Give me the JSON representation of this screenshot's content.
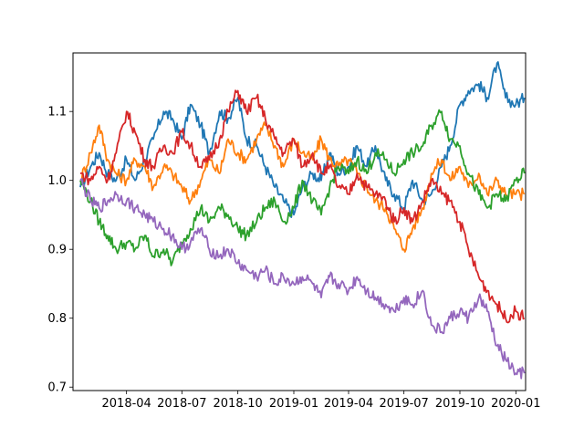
{
  "chart_data": {
    "type": "line",
    "title": "",
    "xlabel": "",
    "ylabel": "",
    "x_range": [
      "2018-01-15",
      "2020-01-15"
    ],
    "xlim": [
      "2018-01-03",
      "2020-01-17"
    ],
    "ylim": [
      0.695,
      1.185
    ],
    "x_ticks": [
      {
        "date": "2018-04-01",
        "label": "2018-04"
      },
      {
        "date": "2018-07-01",
        "label": "2018-07"
      },
      {
        "date": "2018-10-01",
        "label": "2018-10"
      },
      {
        "date": "2019-01-01",
        "label": "2019-01"
      },
      {
        "date": "2019-04-01",
        "label": "2019-04"
      },
      {
        "date": "2019-07-01",
        "label": "2019-07"
      },
      {
        "date": "2019-10-01",
        "label": "2019-10"
      },
      {
        "date": "2020-01-01",
        "label": "2020-01"
      }
    ],
    "y_ticks": [
      {
        "value": 0.7,
        "label": "0.7"
      },
      {
        "value": 0.8,
        "label": "0.8"
      },
      {
        "value": 0.9,
        "label": "0.9"
      },
      {
        "value": 1.0,
        "label": "1.0"
      },
      {
        "value": 1.1,
        "label": "1.1"
      }
    ],
    "grid": false,
    "legend": "none",
    "series": [
      {
        "color": "#1f77b4",
        "points": [
          [
            "2018-01-15",
            0.99
          ],
          [
            "2018-02-01",
            1.02
          ],
          [
            "2018-02-15",
            1.04
          ],
          [
            "2018-03-01",
            1.01
          ],
          [
            "2018-03-15",
            1.0
          ],
          [
            "2018-04-01",
            1.03
          ],
          [
            "2018-04-15",
            1.0
          ],
          [
            "2018-05-01",
            1.03
          ],
          [
            "2018-05-15",
            1.06
          ],
          [
            "2018-06-01",
            1.1
          ],
          [
            "2018-06-15",
            1.09
          ],
          [
            "2018-07-01",
            1.06
          ],
          [
            "2018-07-15",
            1.11
          ],
          [
            "2018-08-01",
            1.08
          ],
          [
            "2018-08-15",
            1.04
          ],
          [
            "2018-09-01",
            1.1
          ],
          [
            "2018-09-15",
            1.09
          ],
          [
            "2018-10-01",
            1.12
          ],
          [
            "2018-10-15",
            1.06
          ],
          [
            "2018-11-01",
            1.05
          ],
          [
            "2018-11-15",
            1.02
          ],
          [
            "2018-12-01",
            0.99
          ],
          [
            "2018-12-15",
            0.97
          ],
          [
            "2019-01-01",
            0.95
          ],
          [
            "2019-01-15",
            0.99
          ],
          [
            "2019-02-01",
            1.01
          ],
          [
            "2019-02-15",
            1.0
          ],
          [
            "2019-03-01",
            1.04
          ],
          [
            "2019-03-15",
            1.01
          ],
          [
            "2019-04-01",
            1.02
          ],
          [
            "2019-04-15",
            1.05
          ],
          [
            "2019-05-01",
            1.02
          ],
          [
            "2019-05-15",
            1.05
          ],
          [
            "2019-06-01",
            1.0
          ],
          [
            "2019-06-15",
            0.98
          ],
          [
            "2019-07-01",
            0.96
          ],
          [
            "2019-07-15",
            1.0
          ],
          [
            "2019-08-01",
            0.97
          ],
          [
            "2019-08-15",
            0.98
          ],
          [
            "2019-09-01",
            1.02
          ],
          [
            "2019-09-15",
            1.05
          ],
          [
            "2019-10-01",
            1.11
          ],
          [
            "2019-10-15",
            1.13
          ],
          [
            "2019-11-01",
            1.14
          ],
          [
            "2019-11-15",
            1.12
          ],
          [
            "2019-12-01",
            1.17
          ],
          [
            "2019-12-15",
            1.12
          ],
          [
            "2020-01-01",
            1.11
          ],
          [
            "2020-01-15",
            1.12
          ]
        ]
      },
      {
        "color": "#ff7f0e",
        "points": [
          [
            "2018-01-15",
            1.0
          ],
          [
            "2018-02-01",
            1.04
          ],
          [
            "2018-02-15",
            1.08
          ],
          [
            "2018-03-01",
            1.03
          ],
          [
            "2018-03-15",
            1.01
          ],
          [
            "2018-04-01",
            1.0
          ],
          [
            "2018-04-15",
            1.03
          ],
          [
            "2018-05-01",
            1.02
          ],
          [
            "2018-05-15",
            0.99
          ],
          [
            "2018-06-01",
            1.02
          ],
          [
            "2018-06-15",
            1.01
          ],
          [
            "2018-07-01",
            0.99
          ],
          [
            "2018-07-15",
            0.97
          ],
          [
            "2018-08-01",
            1.0
          ],
          [
            "2018-08-15",
            1.03
          ],
          [
            "2018-09-01",
            1.01
          ],
          [
            "2018-09-15",
            1.06
          ],
          [
            "2018-10-01",
            1.04
          ],
          [
            "2018-10-15",
            1.03
          ],
          [
            "2018-11-01",
            1.06
          ],
          [
            "2018-11-15",
            1.08
          ],
          [
            "2018-12-01",
            1.05
          ],
          [
            "2018-12-15",
            1.02
          ],
          [
            "2019-01-01",
            1.06
          ],
          [
            "2019-01-15",
            1.04
          ],
          [
            "2019-02-01",
            1.03
          ],
          [
            "2019-02-15",
            1.06
          ],
          [
            "2019-03-01",
            1.03
          ],
          [
            "2019-03-15",
            1.02
          ],
          [
            "2019-04-01",
            1.03
          ],
          [
            "2019-04-15",
            1.01
          ],
          [
            "2019-05-01",
            0.99
          ],
          [
            "2019-05-15",
            0.97
          ],
          [
            "2019-06-01",
            0.96
          ],
          [
            "2019-06-15",
            0.93
          ],
          [
            "2019-07-01",
            0.9
          ],
          [
            "2019-07-15",
            0.93
          ],
          [
            "2019-08-01",
            0.96
          ],
          [
            "2019-08-15",
            1.01
          ],
          [
            "2019-09-01",
            1.03
          ],
          [
            "2019-09-15",
            1.0
          ],
          [
            "2019-10-01",
            1.02
          ],
          [
            "2019-10-15",
            0.99
          ],
          [
            "2019-11-01",
            1.01
          ],
          [
            "2019-11-15",
            0.98
          ],
          [
            "2019-12-01",
            1.0
          ],
          [
            "2019-12-15",
            0.98
          ],
          [
            "2020-01-01",
            0.98
          ],
          [
            "2020-01-15",
            0.98
          ]
        ]
      },
      {
        "color": "#2ca02c",
        "points": [
          [
            "2018-01-15",
            1.0
          ],
          [
            "2018-02-01",
            0.97
          ],
          [
            "2018-02-15",
            0.94
          ],
          [
            "2018-03-01",
            0.92
          ],
          [
            "2018-03-15",
            0.9
          ],
          [
            "2018-04-01",
            0.91
          ],
          [
            "2018-04-15",
            0.9
          ],
          [
            "2018-05-01",
            0.92
          ],
          [
            "2018-05-15",
            0.89
          ],
          [
            "2018-06-01",
            0.9
          ],
          [
            "2018-06-15",
            0.88
          ],
          [
            "2018-07-01",
            0.91
          ],
          [
            "2018-07-15",
            0.93
          ],
          [
            "2018-08-01",
            0.96
          ],
          [
            "2018-08-15",
            0.94
          ],
          [
            "2018-09-01",
            0.96
          ],
          [
            "2018-09-15",
            0.95
          ],
          [
            "2018-10-01",
            0.93
          ],
          [
            "2018-10-15",
            0.92
          ],
          [
            "2018-11-01",
            0.94
          ],
          [
            "2018-11-15",
            0.96
          ],
          [
            "2018-12-01",
            0.97
          ],
          [
            "2018-12-15",
            0.94
          ],
          [
            "2019-01-01",
            0.96
          ],
          [
            "2019-01-15",
            1.0
          ],
          [
            "2019-02-01",
            0.97
          ],
          [
            "2019-02-15",
            0.95
          ],
          [
            "2019-03-01",
            0.99
          ],
          [
            "2019-03-15",
            1.02
          ],
          [
            "2019-04-01",
            1.01
          ],
          [
            "2019-04-15",
            1.03
          ],
          [
            "2019-05-01",
            1.01
          ],
          [
            "2019-05-15",
            1.04
          ],
          [
            "2019-06-01",
            1.03
          ],
          [
            "2019-06-15",
            1.01
          ],
          [
            "2019-07-01",
            1.03
          ],
          [
            "2019-07-15",
            1.04
          ],
          [
            "2019-08-01",
            1.05
          ],
          [
            "2019-08-15",
            1.08
          ],
          [
            "2019-09-01",
            1.1
          ],
          [
            "2019-09-15",
            1.06
          ],
          [
            "2019-10-01",
            1.05
          ],
          [
            "2019-10-15",
            1.01
          ],
          [
            "2019-11-01",
            0.98
          ],
          [
            "2019-11-15",
            0.96
          ],
          [
            "2019-12-01",
            0.98
          ],
          [
            "2019-12-15",
            0.97
          ],
          [
            "2020-01-01",
            1.0
          ],
          [
            "2020-01-15",
            1.01
          ]
        ]
      },
      {
        "color": "#d62728",
        "points": [
          [
            "2018-01-15",
            1.01
          ],
          [
            "2018-02-01",
            1.0
          ],
          [
            "2018-02-15",
            1.02
          ],
          [
            "2018-03-01",
            1.0
          ],
          [
            "2018-03-15",
            1.04
          ],
          [
            "2018-04-01",
            1.1
          ],
          [
            "2018-04-15",
            1.07
          ],
          [
            "2018-05-01",
            1.03
          ],
          [
            "2018-05-15",
            1.02
          ],
          [
            "2018-06-01",
            1.05
          ],
          [
            "2018-06-15",
            1.04
          ],
          [
            "2018-07-01",
            1.07
          ],
          [
            "2018-07-15",
            1.05
          ],
          [
            "2018-08-01",
            1.02
          ],
          [
            "2018-08-15",
            1.03
          ],
          [
            "2018-09-01",
            1.06
          ],
          [
            "2018-09-15",
            1.1
          ],
          [
            "2018-10-01",
            1.13
          ],
          [
            "2018-10-15",
            1.1
          ],
          [
            "2018-11-01",
            1.12
          ],
          [
            "2018-11-15",
            1.09
          ],
          [
            "2018-12-01",
            1.06
          ],
          [
            "2018-12-15",
            1.04
          ],
          [
            "2019-01-01",
            1.06
          ],
          [
            "2019-01-15",
            1.02
          ],
          [
            "2019-02-01",
            1.04
          ],
          [
            "2019-02-15",
            1.01
          ],
          [
            "2019-03-01",
            1.02
          ],
          [
            "2019-03-15",
            0.99
          ],
          [
            "2019-04-01",
            0.98
          ],
          [
            "2019-04-15",
            1.01
          ],
          [
            "2019-05-01",
            0.99
          ],
          [
            "2019-05-15",
            0.98
          ],
          [
            "2019-06-01",
            0.97
          ],
          [
            "2019-06-15",
            0.94
          ],
          [
            "2019-07-01",
            0.96
          ],
          [
            "2019-07-15",
            0.94
          ],
          [
            "2019-08-01",
            0.97
          ],
          [
            "2019-08-15",
            1.0
          ],
          [
            "2019-09-01",
            0.98
          ],
          [
            "2019-09-15",
            0.97
          ],
          [
            "2019-10-01",
            0.94
          ],
          [
            "2019-10-15",
            0.9
          ],
          [
            "2019-11-01",
            0.86
          ],
          [
            "2019-11-15",
            0.84
          ],
          [
            "2019-12-01",
            0.82
          ],
          [
            "2019-12-15",
            0.8
          ],
          [
            "2020-01-01",
            0.81
          ],
          [
            "2020-01-15",
            0.8
          ]
        ]
      },
      {
        "color": "#9467bd",
        "points": [
          [
            "2018-01-15",
            1.0
          ],
          [
            "2018-02-01",
            0.97
          ],
          [
            "2018-02-15",
            0.96
          ],
          [
            "2018-03-01",
            0.97
          ],
          [
            "2018-03-15",
            0.98
          ],
          [
            "2018-04-01",
            0.97
          ],
          [
            "2018-04-15",
            0.96
          ],
          [
            "2018-05-01",
            0.95
          ],
          [
            "2018-05-15",
            0.94
          ],
          [
            "2018-06-01",
            0.93
          ],
          [
            "2018-06-15",
            0.92
          ],
          [
            "2018-07-01",
            0.9
          ],
          [
            "2018-07-15",
            0.91
          ],
          [
            "2018-08-01",
            0.93
          ],
          [
            "2018-08-15",
            0.9
          ],
          [
            "2018-09-01",
            0.89
          ],
          [
            "2018-09-15",
            0.9
          ],
          [
            "2018-10-01",
            0.88
          ],
          [
            "2018-10-15",
            0.87
          ],
          [
            "2018-11-01",
            0.86
          ],
          [
            "2018-11-15",
            0.87
          ],
          [
            "2018-12-01",
            0.85
          ],
          [
            "2018-12-15",
            0.86
          ],
          [
            "2019-01-01",
            0.85
          ],
          [
            "2019-01-15",
            0.86
          ],
          [
            "2019-02-01",
            0.85
          ],
          [
            "2019-02-15",
            0.83
          ],
          [
            "2019-03-01",
            0.86
          ],
          [
            "2019-03-15",
            0.85
          ],
          [
            "2019-04-01",
            0.84
          ],
          [
            "2019-04-15",
            0.86
          ],
          [
            "2019-05-01",
            0.84
          ],
          [
            "2019-05-15",
            0.83
          ],
          [
            "2019-06-01",
            0.82
          ],
          [
            "2019-06-15",
            0.81
          ],
          [
            "2019-07-01",
            0.83
          ],
          [
            "2019-07-15",
            0.82
          ],
          [
            "2019-08-01",
            0.84
          ],
          [
            "2019-08-15",
            0.79
          ],
          [
            "2019-09-01",
            0.78
          ],
          [
            "2019-09-15",
            0.8
          ],
          [
            "2019-10-01",
            0.81
          ],
          [
            "2019-10-15",
            0.8
          ],
          [
            "2019-11-01",
            0.83
          ],
          [
            "2019-11-15",
            0.81
          ],
          [
            "2019-12-01",
            0.76
          ],
          [
            "2019-12-15",
            0.74
          ],
          [
            "2020-01-01",
            0.72
          ],
          [
            "2020-01-15",
            0.72
          ]
        ]
      }
    ]
  }
}
